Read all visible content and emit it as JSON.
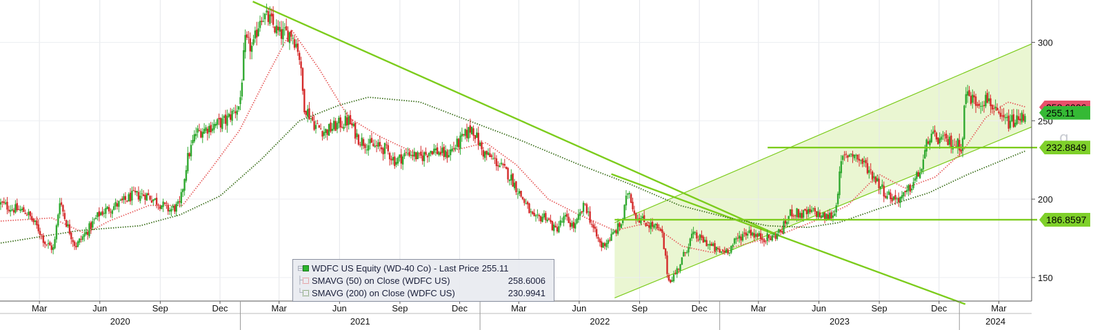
{
  "chart_data": {
    "type": "candlestick",
    "ticker_label": "WDFC US Equity (WD-40 Co)",
    "x_range": [
      "2020-01-01",
      "2024-04-20"
    ],
    "y_axis": {
      "position": "right",
      "min": 135,
      "max": 327,
      "ticks": [
        150,
        200,
        250,
        300
      ]
    },
    "month_ticks": [
      {
        "date": "2020-03-01",
        "label": "Mar"
      },
      {
        "date": "2020-06-01",
        "label": "Jun"
      },
      {
        "date": "2020-09-01",
        "label": "Sep"
      },
      {
        "date": "2020-12-01",
        "label": "Dec"
      },
      {
        "date": "2021-03-01",
        "label": "Mar"
      },
      {
        "date": "2021-06-01",
        "label": "Jun"
      },
      {
        "date": "2021-09-01",
        "label": "Sep"
      },
      {
        "date": "2021-12-01",
        "label": "Dec"
      },
      {
        "date": "2022-03-01",
        "label": "Mar"
      },
      {
        "date": "2022-06-01",
        "label": "Jun"
      },
      {
        "date": "2022-09-01",
        "label": "Sep"
      },
      {
        "date": "2022-12-01",
        "label": "Dec"
      },
      {
        "date": "2023-03-01",
        "label": "Mar"
      },
      {
        "date": "2023-06-01",
        "label": "Jun"
      },
      {
        "date": "2023-09-01",
        "label": "Sep"
      },
      {
        "date": "2023-12-01",
        "label": "Dec"
      },
      {
        "date": "2024-03-01",
        "label": "Mar"
      }
    ],
    "years": [
      "2020",
      "2021",
      "2022",
      "2023",
      "2024"
    ],
    "price_anchors": [
      [
        "2020-01-02",
        197
      ],
      [
        "2020-01-20",
        194
      ],
      [
        "2020-02-10",
        192
      ],
      [
        "2020-03-01",
        180
      ],
      [
        "2020-03-10",
        172
      ],
      [
        "2020-03-23",
        168
      ],
      [
        "2020-04-01",
        200
      ],
      [
        "2020-04-10",
        186
      ],
      [
        "2020-04-25",
        170
      ],
      [
        "2020-05-10",
        178
      ],
      [
        "2020-06-01",
        191
      ],
      [
        "2020-06-20",
        195
      ],
      [
        "2020-07-05",
        198
      ],
      [
        "2020-07-20",
        202
      ],
      [
        "2020-08-10",
        203
      ],
      [
        "2020-08-25",
        199
      ],
      [
        "2020-09-15",
        193
      ],
      [
        "2020-10-01",
        196
      ],
      [
        "2020-10-12",
        225
      ],
      [
        "2020-10-25",
        242
      ],
      [
        "2020-11-15",
        246
      ],
      [
        "2020-12-10",
        250
      ],
      [
        "2020-12-31",
        260
      ],
      [
        "2021-01-08",
        300
      ],
      [
        "2021-01-20",
        296
      ],
      [
        "2021-02-01",
        318
      ],
      [
        "2021-02-15",
        314
      ],
      [
        "2021-03-01",
        305
      ],
      [
        "2021-03-20",
        306
      ],
      [
        "2021-03-31",
        295
      ],
      [
        "2021-04-08",
        260
      ],
      [
        "2021-04-25",
        247
      ],
      [
        "2021-05-10",
        243
      ],
      [
        "2021-06-01",
        248
      ],
      [
        "2021-06-15",
        250
      ],
      [
        "2021-07-01",
        238
      ],
      [
        "2021-07-20",
        234
      ],
      [
        "2021-08-10",
        232
      ],
      [
        "2021-08-25",
        224
      ],
      [
        "2021-09-15",
        230
      ],
      [
        "2021-10-01",
        226
      ],
      [
        "2021-10-20",
        232
      ],
      [
        "2021-11-10",
        228
      ],
      [
        "2021-11-30",
        236
      ],
      [
        "2021-12-20",
        246
      ],
      [
        "2022-01-05",
        230
      ],
      [
        "2022-01-25",
        224
      ],
      [
        "2022-02-15",
        215
      ],
      [
        "2022-03-10",
        198
      ],
      [
        "2022-03-25",
        186
      ],
      [
        "2022-04-10",
        190
      ],
      [
        "2022-04-25",
        180
      ],
      [
        "2022-05-10",
        188
      ],
      [
        "2022-05-25",
        182
      ],
      [
        "2022-06-10",
        197
      ],
      [
        "2022-06-25",
        178
      ],
      [
        "2022-07-05",
        170
      ],
      [
        "2022-07-20",
        176
      ],
      [
        "2022-08-05",
        185
      ],
      [
        "2022-08-15",
        207
      ],
      [
        "2022-08-25",
        190
      ],
      [
        "2022-09-10",
        185
      ],
      [
        "2022-09-25",
        182
      ],
      [
        "2022-10-05",
        178
      ],
      [
        "2022-10-15",
        148
      ],
      [
        "2022-10-25",
        152
      ],
      [
        "2022-11-05",
        162
      ],
      [
        "2022-11-20",
        177
      ],
      [
        "2022-12-10",
        173
      ],
      [
        "2022-12-31",
        166
      ],
      [
        "2023-01-15",
        168
      ],
      [
        "2023-01-31",
        176
      ],
      [
        "2023-02-15",
        180
      ],
      [
        "2023-02-28",
        176
      ],
      [
        "2023-03-20",
        175
      ],
      [
        "2023-04-05",
        180
      ],
      [
        "2023-04-20",
        192
      ],
      [
        "2023-05-05",
        190
      ],
      [
        "2023-05-25",
        192
      ],
      [
        "2023-06-10",
        188
      ],
      [
        "2023-06-25",
        191
      ],
      [
        "2023-07-06",
        225
      ],
      [
        "2023-07-20",
        230
      ],
      [
        "2023-08-10",
        222
      ],
      [
        "2023-08-25",
        214
      ],
      [
        "2023-09-10",
        204
      ],
      [
        "2023-09-25",
        200
      ],
      [
        "2023-10-10",
        202
      ],
      [
        "2023-10-25",
        212
      ],
      [
        "2023-11-05",
        220
      ],
      [
        "2023-11-15",
        240
      ],
      [
        "2023-12-01",
        238
      ],
      [
        "2023-12-20",
        236
      ],
      [
        "2024-01-05",
        234
      ],
      [
        "2024-01-10",
        268
      ],
      [
        "2024-01-25",
        262
      ],
      [
        "2024-02-15",
        264
      ],
      [
        "2024-02-28",
        252
      ],
      [
        "2024-03-15",
        249
      ],
      [
        "2024-03-31",
        250
      ],
      [
        "2024-04-12",
        255.11
      ]
    ],
    "sma50_anchors": [
      [
        "2020-01-02",
        186
      ],
      [
        "2020-03-20",
        188
      ],
      [
        "2020-05-10",
        178
      ],
      [
        "2020-06-15",
        186
      ],
      [
        "2020-08-15",
        196
      ],
      [
        "2020-10-05",
        196
      ],
      [
        "2020-11-15",
        218
      ],
      [
        "2020-12-31",
        244
      ],
      [
        "2021-02-10",
        278
      ],
      [
        "2021-03-20",
        308
      ],
      [
        "2021-05-01",
        283
      ],
      [
        "2021-06-15",
        252
      ],
      [
        "2021-08-01",
        240
      ],
      [
        "2021-10-01",
        228
      ],
      [
        "2021-12-01",
        232
      ],
      [
        "2022-01-10",
        236
      ],
      [
        "2022-02-25",
        222
      ],
      [
        "2022-04-15",
        200
      ],
      [
        "2022-06-01",
        190
      ],
      [
        "2022-07-25",
        180
      ],
      [
        "2022-09-15",
        185
      ],
      [
        "2022-11-05",
        170
      ],
      [
        "2022-12-20",
        166
      ],
      [
        "2023-02-15",
        172
      ],
      [
        "2023-04-01",
        177
      ],
      [
        "2023-05-25",
        186
      ],
      [
        "2023-07-15",
        196
      ],
      [
        "2023-08-31",
        216
      ],
      [
        "2023-10-10",
        207
      ],
      [
        "2023-11-25",
        214
      ],
      [
        "2024-01-05",
        230
      ],
      [
        "2024-02-10",
        252
      ],
      [
        "2024-03-15",
        262
      ],
      [
        "2024-04-12",
        258.6006
      ]
    ],
    "sma200_anchors": [
      [
        "2020-01-02",
        172
      ],
      [
        "2020-05-01",
        180
      ],
      [
        "2020-08-01",
        183
      ],
      [
        "2020-10-01",
        190
      ],
      [
        "2020-12-01",
        202
      ],
      [
        "2021-02-01",
        225
      ],
      [
        "2021-04-01",
        250
      ],
      [
        "2021-06-01",
        260
      ],
      [
        "2021-07-15",
        265
      ],
      [
        "2021-10-01",
        262
      ],
      [
        "2021-12-15",
        250
      ],
      [
        "2022-03-01",
        238
      ],
      [
        "2022-06-01",
        222
      ],
      [
        "2022-08-15",
        210
      ],
      [
        "2022-11-01",
        196
      ],
      [
        "2023-01-15",
        188
      ],
      [
        "2023-03-15",
        183
      ],
      [
        "2023-05-15",
        182
      ],
      [
        "2023-07-01",
        185
      ],
      [
        "2023-09-01",
        194
      ],
      [
        "2023-11-15",
        204
      ],
      [
        "2024-01-15",
        216
      ],
      [
        "2024-04-12",
        230.9941
      ]
    ],
    "trendlines": {
      "downtrend": [
        [
          "2021-01-20",
          326
        ],
        [
          "2023-03-31",
          177
        ]
      ],
      "lower_parallel": [
        [
          "2022-07-20",
          216
        ],
        [
          "2024-01-10",
          133
        ]
      ],
      "channel_upper": [
        [
          "2022-07-25",
          185
        ],
        [
          "2024-04-20",
          299
        ]
      ],
      "channel_lower": [
        [
          "2022-07-25",
          137
        ],
        [
          "2024-04-20",
          246
        ]
      ]
    },
    "horizontal_levels": [
      {
        "value": 232.8849,
        "from": "2023-03-15",
        "label": "232.8849"
      },
      {
        "value": 186.8597,
        "from": "2022-07-25",
        "label": "186.8597"
      }
    ],
    "right_tags": [
      {
        "value": 258.6006,
        "label": "258.6006",
        "color": "#e8506a"
      },
      {
        "value": 255.11,
        "label": "255.11",
        "color": "#35b935"
      },
      {
        "value": 232.8849,
        "label": "232.8849",
        "color": "#7fd02a"
      },
      {
        "value": 186.8597,
        "label": "186.8597",
        "color": "#7fd02a"
      }
    ],
    "legend": [
      {
        "label": "WDFC US Equity (WD-40 Co)  - Last Price",
        "value": "255.11"
      },
      {
        "label": "SMAVG (50)  on Close (WDFC US)",
        "value": "258.6006"
      },
      {
        "label": "SMAVG (200)  on Close (WDFC US)",
        "value": "230.9941"
      }
    ],
    "colors": {
      "up": "#2fa82f",
      "down": "#d42a2a",
      "sma50": "#e65c5c",
      "sma200": "#3a6e1a",
      "trend": "#7ccc1c",
      "channel_fill": "#eaf6d2"
    }
  }
}
